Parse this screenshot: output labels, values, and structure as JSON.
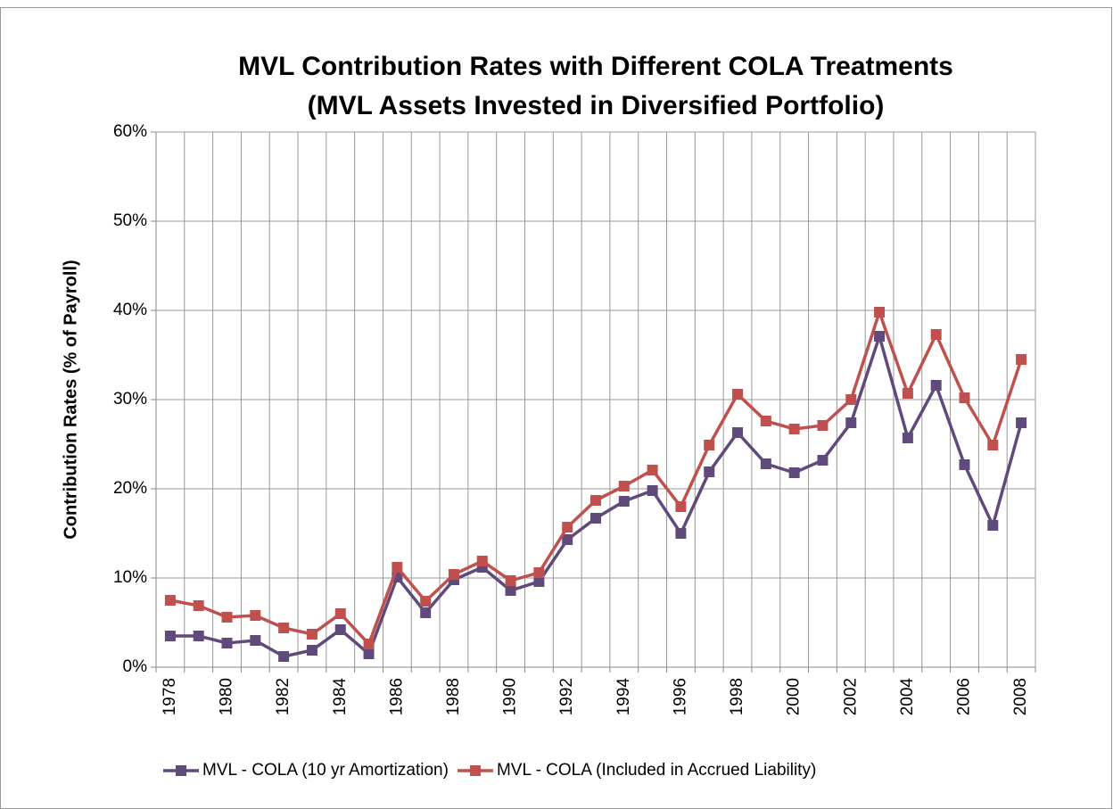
{
  "chart_data": {
    "type": "line",
    "title": [
      "MVL Contribution Rates with Different COLA Treatments",
      "(MVL Assets Invested in Diversified Portfolio)"
    ],
    "y_label": "Contribution Rates (% of Payroll)",
    "categories": [
      "1978",
      null,
      "1980",
      null,
      "1982",
      null,
      "1984",
      null,
      "1986",
      null,
      "1988",
      null,
      "1990",
      null,
      "1992",
      null,
      "1994",
      null,
      "1996",
      null,
      "1998",
      null,
      "2000",
      null,
      "2002",
      null,
      "2004",
      null,
      "2006",
      null,
      "2008"
    ],
    "series": [
      {
        "name": "MVL - COLA (10 yr Amortization)",
        "color": "#604a7b",
        "values": [
          3.5,
          3.5,
          2.7,
          3.0,
          1.2,
          1.9,
          4.2,
          1.5,
          10.1,
          6.1,
          9.8,
          11.2,
          8.6,
          9.6,
          14.3,
          16.7,
          18.6,
          19.8,
          15.0,
          21.9,
          26.3,
          22.8,
          21.8,
          23.2,
          27.4,
          37.1,
          25.7,
          31.6,
          22.7,
          15.9,
          27.4
        ]
      },
      {
        "name": "MVL - COLA (Included in Accrued Liability)",
        "color": "#c0504d",
        "values": [
          7.5,
          6.9,
          5.6,
          5.8,
          4.4,
          3.7,
          6.0,
          2.6,
          11.2,
          7.4,
          10.4,
          11.9,
          9.7,
          10.6,
          15.7,
          18.7,
          20.3,
          22.1,
          18.0,
          24.9,
          30.6,
          27.6,
          26.7,
          27.1,
          30.0,
          39.8,
          30.7,
          37.3,
          30.2,
          24.9,
          34.5
        ]
      }
    ],
    "ylim": [
      0,
      60
    ],
    "yticks": [
      {
        "value": 0,
        "label": "0%"
      },
      {
        "value": 10,
        "label": "10%"
      },
      {
        "value": 20,
        "label": "20%"
      },
      {
        "value": 30,
        "label": "30%"
      },
      {
        "value": 40,
        "label": "40%"
      },
      {
        "value": 50,
        "label": "50%"
      },
      {
        "value": 60,
        "label": "60%"
      }
    ],
    "grid": true,
    "legend": "bottom"
  }
}
